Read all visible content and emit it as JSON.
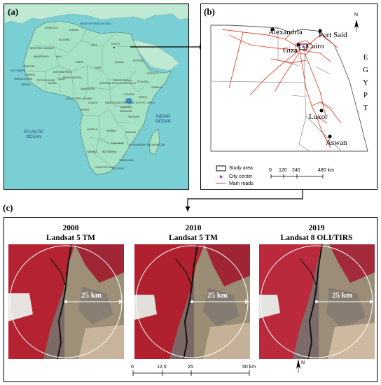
{
  "panel_a": {
    "label": "(a)",
    "oceans": {
      "mediterranean": "MEDITERRANEAN SEA",
      "atlantic": "ATLANTIC OCEAN",
      "indian": "INDIAN OCEAN"
    },
    "countries": [
      "TUNISIA",
      "MOROCCO",
      "ALGERIA",
      "LIBYA",
      "EGYPT",
      "WESTERN SAHARA",
      "MAURITANIA",
      "MALI",
      "NIGER",
      "CHAD",
      "SUDAN",
      "ERITREA",
      "ETHIOPIA",
      "SOMALIA",
      "DJIBOUTI",
      "SENEGAL",
      "THE GAMBIA",
      "GUINEA",
      "SIERRA LEONE",
      "LIBERIA",
      "COTE D'IVOIRE",
      "GHANA",
      "BURKINA FASO",
      "TOGO",
      "BENIN",
      "NIGERIA",
      "CAMEROON",
      "EQUATORIAL GUINEA",
      "GABON",
      "CONGO",
      "CENTRAL AFRICAN REPUBLIC",
      "DEMOCRATIC REPUBLIC OF THE CONGO",
      "UGANDA",
      "KENYA",
      "RWANDA",
      "BURUNDI",
      "TANZANIA",
      "ANGOLA",
      "ZAMBIA",
      "MALAWI",
      "MOZAMBIQUE",
      "ZIMBABWE",
      "NAMIBIA",
      "BOTSWANA",
      "SOUTH AFRICA",
      "LESOTHO",
      "SWAZILAND",
      "MADAGASCAR",
      "SOUTH SUDAN"
    ]
  },
  "panel_b": {
    "label": "(b)",
    "country_name": "EGYPT",
    "cities": [
      "Alexandria",
      "Port Said",
      "Giza",
      "Cairo",
      "Luxor",
      "Aswan"
    ],
    "legend": {
      "study_area": "Study area",
      "city_center": "City center",
      "main_roads": "Main roads"
    },
    "scale_ticks": [
      "0",
      "120",
      "240",
      "480 km"
    ],
    "north": "N"
  },
  "panel_c": {
    "label": "(c)",
    "images": [
      {
        "year": "2000",
        "sensor": "Landsat 5 TM",
        "radius": "25 km"
      },
      {
        "year": "2010",
        "sensor": "Landsat 5 TM",
        "radius": "25 km"
      },
      {
        "year": "2019",
        "sensor": "Landsat 8 OLI/TIRS",
        "radius": "25 km"
      }
    ],
    "scale_ticks": [
      "0",
      "12.5",
      "25",
      "50 km"
    ],
    "north": "N"
  },
  "colors": {
    "sea": "#6fc9cf",
    "land": "#a8e3c6",
    "vegetation": "#c51c2e",
    "roads": "#e2503c"
  }
}
